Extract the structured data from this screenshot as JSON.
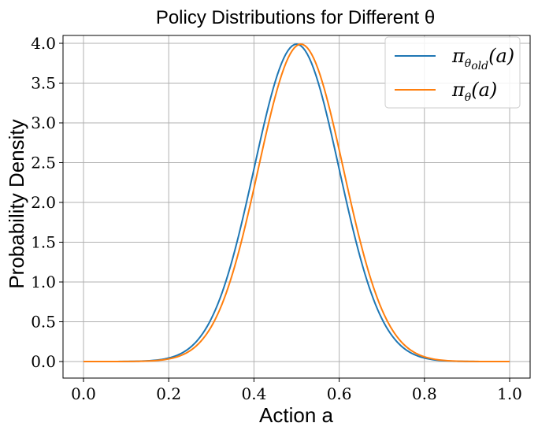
{
  "chart_data": {
    "type": "line",
    "title": "Policy Distributions for Different θ",
    "xlabel": "Action a",
    "ylabel": "Probability Density",
    "xlim": [
      0.0,
      1.0
    ],
    "ylim": [
      0.0,
      4.0
    ],
    "xticks": [
      "0.0",
      "0.2",
      "0.4",
      "0.6",
      "0.8",
      "1.0"
    ],
    "yticks": [
      "0.0",
      "0.5",
      "1.0",
      "1.5",
      "2.0",
      "2.5",
      "3.0",
      "3.5",
      "4.0"
    ],
    "grid": true,
    "legend_position": "top-right",
    "series": [
      {
        "name": "π_θold(a)",
        "color": "#1f77b4",
        "mean": 0.5,
        "std": 0.1,
        "x": [
          0.0,
          0.1,
          0.2,
          0.25,
          0.3,
          0.35,
          0.4,
          0.45,
          0.5,
          0.55,
          0.6,
          0.65,
          0.7,
          0.75,
          0.8,
          0.9,
          1.0
        ],
        "y": [
          0.0,
          0.0013,
          0.044,
          0.175,
          0.54,
          1.295,
          2.42,
          3.52,
          3.99,
          3.52,
          2.42,
          1.295,
          0.54,
          0.175,
          0.044,
          0.0013,
          0.0
        ]
      },
      {
        "name": "π_θ(a)",
        "color": "#ff7f0e",
        "mean": 0.51,
        "std": 0.1,
        "x": [
          0.0,
          0.1,
          0.2,
          0.25,
          0.3,
          0.35,
          0.4,
          0.45,
          0.51,
          0.55,
          0.6,
          0.65,
          0.7,
          0.75,
          0.8,
          0.9,
          1.0
        ],
        "y": [
          0.0,
          0.0009,
          0.034,
          0.141,
          0.457,
          1.108,
          2.177,
          3.333,
          3.99,
          3.68,
          2.663,
          1.497,
          0.656,
          0.224,
          0.06,
          0.002,
          0.0
        ]
      }
    ]
  }
}
